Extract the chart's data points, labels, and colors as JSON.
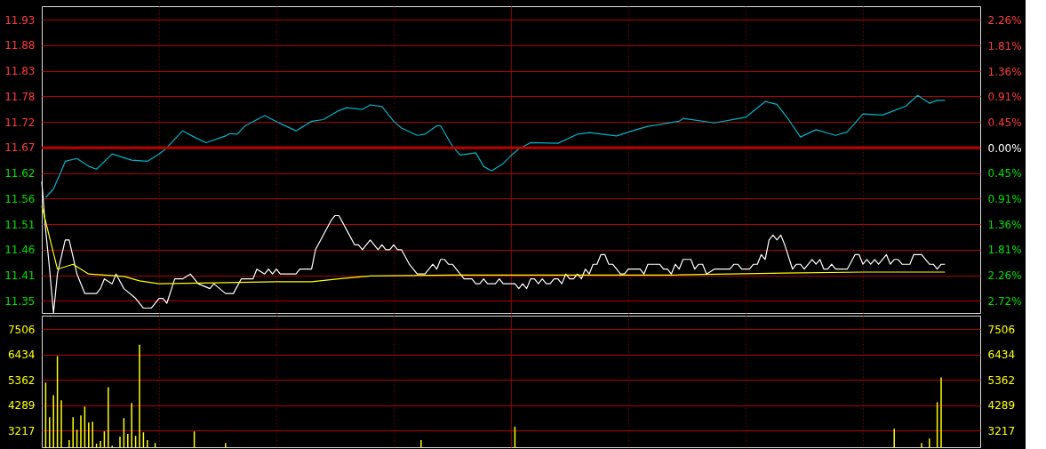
{
  "chart_data": [
    {
      "type": "line",
      "categories": [
        null,
        null,
        null,
        null,
        null,
        null,
        null,
        null,
        null,
        null,
        null,
        null,
        null,
        null,
        null,
        null,
        null,
        null,
        null,
        null,
        null,
        null,
        null,
        null,
        null,
        null,
        null,
        null,
        null,
        null,
        null,
        null,
        null,
        null,
        null,
        null,
        null,
        null,
        null,
        null,
        null,
        null,
        null,
        null,
        null,
        null,
        null,
        null,
        null,
        null,
        null,
        null,
        null,
        null,
        null,
        null,
        null,
        null,
        null,
        null,
        null,
        null,
        null,
        null,
        null,
        null,
        null,
        null,
        null,
        null,
        null,
        null,
        null,
        null,
        null,
        null,
        null,
        null,
        null,
        null,
        null,
        null,
        null,
        null,
        null,
        null,
        null,
        null,
        null,
        null,
        null,
        null,
        null,
        null,
        null,
        null,
        null,
        null,
        null,
        null,
        null,
        null,
        null,
        null,
        null,
        null,
        null,
        null,
        null,
        null,
        null,
        null,
        null,
        null,
        null,
        null,
        null,
        null,
        null,
        null,
        null,
        null,
        null,
        null,
        null,
        null,
        null,
        null,
        null,
        null,
        null,
        null,
        null,
        null,
        null,
        null,
        null,
        null,
        null,
        null,
        null,
        null,
        null,
        null,
        null,
        null,
        null,
        null,
        null,
        null,
        null,
        null,
        null,
        null,
        null,
        null,
        null,
        null,
        null,
        null,
        null,
        null,
        null,
        null,
        null,
        null,
        null,
        null,
        null,
        null,
        null,
        null,
        null,
        null,
        null,
        null,
        null,
        null,
        null,
        null,
        null,
        null,
        null,
        null,
        null,
        null,
        null,
        null,
        null,
        null,
        null,
        null,
        null,
        null,
        null,
        null,
        null,
        null,
        null,
        null,
        null,
        null,
        null,
        null,
        null,
        null,
        null,
        null,
        null,
        null,
        null,
        null,
        null,
        null,
        null,
        null,
        null,
        null,
        null,
        null,
        null,
        null,
        null,
        null,
        null,
        null,
        null,
        null,
        null,
        null,
        null,
        null,
        null,
        null,
        null,
        null,
        null,
        null,
        null,
        null,
        null
      ],
      "ylim": [
        11.33,
        11.96
      ],
      "yticks": [
        {
          "value": 11.355,
          "label": "11.35"
        },
        {
          "value": 11.4075,
          "label": "11.41"
        },
        11.46,
        {
          "value": 11.5125,
          "label": "11.51"
        },
        {
          "value": 11.565,
          "label": "11.56"
        },
        {
          "value": 11.6175,
          "label": "11.62"
        },
        11.67,
        {
          "value": 11.7225,
          "label": "11.72"
        },
        {
          "value": 11.775,
          "label": "11.78"
        },
        {
          "value": 11.8275,
          "label": "11.83"
        },
        11.88,
        {
          "value": 11.9325,
          "label": "11.93"
        }
      ],
      "y2lim": [
        -2.93,
        2.51
      ],
      "y2ticks": [
        {
          "value": -2.715,
          "label": "2.72%"
        },
        {
          "value": -2.2625,
          "label": "2.26%"
        },
        {
          "value": -1.81,
          "label": "1.81%"
        },
        {
          "value": -1.3575,
          "label": "1.36%"
        },
        {
          "value": -0.905,
          "label": "0.91%"
        },
        {
          "value": -0.4525,
          "label": "0.45%"
        },
        {
          "value": 0,
          "label": "0.00%"
        },
        {
          "value": 0.4525,
          "label": "0.45%"
        },
        {
          "value": 0.905,
          "label": "0.91%"
        },
        {
          "value": 1.3575,
          "label": "1.36%"
        },
        {
          "value": 1.81,
          "label": "1.81%"
        },
        {
          "value": 2.2625,
          "label": "2.26%"
        }
      ],
      "grid": true,
      "tick_labels": "y",
      "ref_lines": [
        {
          "axis": "y2",
          "value": 0,
          "color": "#c00000",
          "line_style": "solid"
        }
      ],
      "series": [
        {
          "color": "#ffffff",
          "values": [
            11.6,
            11.5,
            11.42,
            11.33,
            11.41,
            null,
            11.48,
            11.48,
            null,
            11.41,
            null,
            11.37,
            11.37,
            11.37,
            11.37,
            11.38,
            11.4,
            null,
            11.39,
            11.41,
            null,
            11.38,
            null,
            null,
            11.36,
            null,
            11.34,
            11.34,
            11.34,
            null,
            11.36,
            11.36,
            11.35,
            null,
            11.4,
            11.4,
            11.4,
            null,
            11.41,
            11.4,
            11.39,
            null,
            null,
            11.38,
            11.39,
            null,
            null,
            11.37,
            11.37,
            11.37,
            null,
            11.4,
            11.4,
            11.4,
            11.4,
            11.42,
            null,
            11.41,
            11.42,
            11.41,
            11.42,
            11.41,
            11.41,
            11.41,
            11.41,
            11.41,
            11.42,
            11.42,
            11.42,
            11.42,
            11.46,
            null,
            null,
            null,
            11.52,
            11.53,
            11.53,
            null,
            11.5,
            null,
            11.47,
            11.47,
            11.46,
            null,
            11.48,
            null,
            11.46,
            11.47,
            11.46,
            11.46,
            11.47,
            11.46,
            11.46,
            null,
            11.43,
            null,
            11.41,
            11.41,
            11.41,
            null,
            11.43,
            11.42,
            11.44,
            11.44,
            11.43,
            11.43,
            null,
            null,
            11.4,
            11.4,
            11.4,
            11.39,
            11.39,
            11.4,
            11.39,
            11.39,
            11.39,
            11.4,
            11.39,
            11.39,
            11.39,
            11.39,
            11.38,
            11.39,
            11.38,
            11.4,
            11.4,
            11.39,
            11.4,
            11.39,
            11.39,
            11.4,
            11.4,
            11.39,
            11.41,
            11.4,
            11.4,
            11.41,
            11.4,
            11.42,
            11.41,
            11.43,
            11.43,
            11.45,
            11.45,
            11.43,
            11.43,
            null,
            11.41,
            11.41,
            11.42,
            11.42,
            11.42,
            11.42,
            11.41,
            11.43,
            11.43,
            11.43,
            11.43,
            11.42,
            11.42,
            11.41,
            11.43,
            11.42,
            11.44,
            11.44,
            11.44,
            11.42,
            11.43,
            11.43,
            11.41,
            null,
            11.42,
            11.42,
            11.42,
            11.42,
            11.42,
            11.43,
            11.43,
            11.42,
            11.42,
            11.42,
            11.43,
            11.43,
            11.45,
            11.44,
            11.48,
            11.49,
            11.48,
            11.49,
            11.47,
            null,
            11.42,
            11.43,
            11.43,
            11.42,
            null,
            11.44,
            11.43,
            11.44,
            11.42,
            11.42,
            11.43,
            11.42,
            11.42,
            11.42,
            11.42,
            null,
            11.45,
            11.45,
            11.43,
            11.44,
            11.43,
            11.44,
            11.43,
            11.44,
            11.45,
            11.43,
            11.44,
            11.44,
            11.43,
            11.43,
            11.43,
            11.45,
            11.45,
            11.45,
            null,
            11.43,
            11.43,
            11.42,
            11.43,
            11.43,
            null,
            null,
            null,
            null,
            null,
            null,
            null,
            null,
            null
          ]
        },
        {
          "color": "#ffff00",
          "values": [
            11.55,
            null,
            null,
            null,
            11.42,
            null,
            null,
            null,
            11.43,
            null,
            null,
            null,
            11.41,
            null,
            null,
            null,
            11.408,
            null,
            null,
            null,
            null,
            11.405,
            null,
            null,
            null,
            11.396,
            null,
            null,
            null,
            null,
            11.39,
            null,
            null,
            null,
            null,
            null,
            null,
            null,
            null,
            null,
            null,
            null,
            null,
            null,
            null,
            null,
            null,
            null,
            null,
            null,
            null,
            null,
            null,
            null,
            null,
            null,
            null,
            null,
            null,
            null,
            11.394,
            null,
            null,
            null,
            null,
            null,
            null,
            null,
            null,
            11.394,
            null,
            null,
            null,
            null,
            null,
            null,
            null,
            11.401,
            null,
            null,
            null,
            null,
            null,
            null,
            11.406,
            null,
            null,
            null,
            null,
            null,
            null,
            null,
            null,
            null,
            null,
            null,
            null,
            null,
            null,
            null,
            null,
            null,
            null,
            null,
            null,
            null,
            null,
            null,
            11.408,
            null,
            null,
            null,
            null,
            null,
            null,
            null,
            null,
            null,
            null,
            null,
            null,
            null,
            null,
            null,
            null,
            null,
            null,
            null,
            null,
            null,
            null,
            null,
            null,
            null,
            null,
            null,
            null,
            null,
            null,
            null,
            null,
            null,
            null,
            null,
            null,
            null,
            null,
            null,
            null,
            null,
            null,
            null,
            null,
            null,
            null,
            null,
            null,
            null,
            null,
            null,
            null,
            11.408,
            null,
            null,
            null,
            null,
            null,
            null,
            null,
            null,
            null,
            null,
            null,
            null,
            null,
            null,
            null,
            null,
            null,
            null,
            null,
            null,
            null,
            null,
            null,
            null,
            null,
            null,
            null,
            null,
            11.412,
            null,
            null,
            null,
            null,
            null,
            null,
            null,
            null,
            null,
            null,
            null,
            null,
            null,
            null,
            null,
            null,
            null,
            null,
            null,
            11.414,
            null,
            null,
            null,
            null,
            null,
            null,
            null,
            null,
            null,
            null,
            null,
            null,
            null,
            null,
            null,
            null,
            null,
            null,
            null,
            null,
            11.414,
            null,
            null,
            null,
            null,
            null,
            null,
            null,
            null,
            null
          ]
        },
        {
          "color": "#00b4c8",
          "axis": "y2",
          "values": [
            null,
            -0.88,
            null,
            -0.73,
            null,
            -0.41,
            -0.24,
            null,
            null,
            -0.19,
            null,
            null,
            -0.33,
            null,
            -0.38,
            null,
            null,
            null,
            -0.11,
            null,
            null,
            null,
            null,
            -0.22,
            null,
            null,
            null,
            -0.24,
            null,
            null,
            -0.11,
            null,
            0.0,
            null,
            null,
            null,
            0.3,
            null,
            null,
            0.19,
            null,
            null,
            0.09,
            null,
            null,
            null,
            null,
            0.21,
            0.25,
            null,
            0.24,
            null,
            0.39,
            null,
            null,
            null,
            null,
            0.57,
            null,
            null,
            null,
            0.43,
            null,
            null,
            null,
            0.3,
            null,
            null,
            null,
            0.47,
            null,
            null,
            0.5,
            null,
            null,
            null,
            0.66,
            null,
            0.71,
            null,
            null,
            null,
            0.68,
            null,
            0.76,
            null,
            null,
            0.73,
            null,
            null,
            0.47,
            null,
            0.35,
            null,
            null,
            null,
            0.22,
            null,
            0.24,
            null,
            null,
            0.39,
            0.39,
            null,
            null,
            0.03,
            null,
            -0.13,
            null,
            null,
            null,
            -0.09,
            null,
            -0.33,
            null,
            -0.41,
            null,
            null,
            -0.28,
            null,
            -0.14,
            null,
            -0.02,
            null,
            null,
            0.09,
            null,
            null,
            null,
            null,
            null,
            null,
            0.08,
            null,
            null,
            null,
            null,
            0.24,
            null,
            null,
            0.27,
            null,
            null,
            null,
            null,
            null,
            null,
            0.21,
            null,
            null,
            null,
            0.3,
            null,
            null,
            null,
            0.38,
            null,
            null,
            null,
            null,
            null,
            null,
            null,
            0.47,
            0.52,
            null,
            null,
            null,
            null,
            null,
            null,
            null,
            0.44,
            null,
            null,
            null,
            null,
            null,
            null,
            null,
            0.54,
            null,
            null,
            null,
            null,
            0.82,
            null,
            null,
            0.77,
            null,
            null,
            0.5,
            null,
            null,
            0.19,
            null,
            null,
            null,
            0.32,
            null,
            null,
            null,
            null,
            0.22,
            null,
            null,
            0.28,
            null,
            null,
            null,
            0.6,
            null,
            null,
            null,
            null,
            0.58,
            null,
            null,
            null,
            null,
            null,
            0.74,
            null,
            null,
            0.93,
            null,
            null,
            0.79,
            null,
            0.84,
            null,
            0.84,
            null,
            null,
            null,
            null,
            null,
            null,
            null,
            null,
            null
          ]
        }
      ]
    },
    {
      "type": "bar",
      "color": "#ffff00",
      "categories": [
        null,
        null,
        null,
        null,
        null,
        null,
        null,
        null,
        null,
        null,
        null,
        null,
        null,
        null,
        null,
        null,
        null,
        null,
        null,
        null,
        null,
        null,
        null,
        null,
        null,
        null,
        null,
        null,
        null,
        null,
        null,
        null,
        null,
        null,
        null,
        null,
        null,
        null,
        null,
        null,
        null,
        null,
        null,
        null,
        null,
        null,
        null,
        null,
        null,
        null,
        null,
        null,
        null,
        null,
        null,
        null,
        null,
        null,
        null,
        null,
        null,
        null,
        null,
        null,
        null,
        null,
        null,
        null,
        null,
        null,
        null,
        null,
        null,
        null,
        null,
        null,
        null,
        null,
        null,
        null,
        null,
        null,
        null,
        null,
        null,
        null,
        null,
        null,
        null,
        null,
        null,
        null,
        null,
        null,
        null,
        null,
        null,
        null,
        null,
        null,
        null,
        null,
        null,
        null,
        null,
        null,
        null,
        null,
        null,
        null,
        null,
        null,
        null,
        null,
        null,
        null,
        null,
        null,
        null,
        null,
        null,
        null,
        null,
        null,
        null,
        null,
        null,
        null,
        null,
        null,
        null,
        null,
        null,
        null,
        null,
        null,
        null,
        null,
        null,
        null,
        null,
        null,
        null,
        null,
        null,
        null,
        null,
        null,
        null,
        null,
        null,
        null,
        null,
        null,
        null,
        null,
        null,
        null,
        null,
        null,
        null,
        null,
        null,
        null,
        null,
        null,
        null,
        null,
        null,
        null,
        null,
        null,
        null,
        null,
        null,
        null,
        null,
        null,
        null,
        null,
        null,
        null,
        null,
        null,
        null,
        null,
        null,
        null,
        null,
        null,
        null,
        null,
        null,
        null,
        null,
        null,
        null,
        null,
        null,
        null,
        null,
        null,
        null,
        null,
        null,
        null,
        null,
        null,
        null,
        null,
        null,
        null,
        null,
        null,
        null,
        null,
        null,
        null,
        null,
        null,
        null,
        null,
        null,
        null,
        null,
        null,
        null,
        null,
        null,
        null,
        null,
        null,
        null,
        null,
        null,
        null,
        null,
        null,
        null,
        null,
        null
      ],
      "ylim": [
        2510,
        8070
      ],
      "yticks": [
        3217,
        4289,
        5362,
        6434,
        7506
      ],
      "y2lim": [
        2510,
        8070
      ],
      "y2ticks": [
        3217,
        4289,
        5362,
        6434,
        7506
      ],
      "grid": true,
      "tick_labels": "y",
      "values": [
        null,
        5240,
        3780,
        4710,
        6360,
        4490,
        null,
        2810,
        3780,
        3250,
        3850,
        4230,
        3550,
        3590,
        2660,
        2770,
        3180,
        5050,
        2580,
        null,
        2960,
        3740,
        3070,
        4380,
        2990,
        6840,
        3140,
        2810,
        null,
        2690,
        null,
        null,
        null,
        null,
        null,
        null,
        null,
        null,
        null,
        3180,
        null,
        null,
        null,
        null,
        null,
        null,
        null,
        2690,
        null,
        null,
        null,
        null,
        null,
        null,
        null,
        null,
        null,
        null,
        null,
        null,
        null,
        null,
        null,
        null,
        null,
        null,
        null,
        null,
        null,
        null,
        null,
        null,
        null,
        null,
        null,
        null,
        null,
        null,
        null,
        null,
        null,
        null,
        null,
        null,
        null,
        null,
        null,
        null,
        null,
        null,
        null,
        null,
        null,
        null,
        null,
        null,
        null,
        2810,
        null,
        null,
        null,
        null,
        null,
        null,
        null,
        null,
        null,
        null,
        null,
        null,
        null,
        null,
        null,
        null,
        null,
        null,
        null,
        null,
        null,
        null,
        null,
        3380,
        null,
        null,
        null,
        null,
        null,
        null,
        null,
        null,
        null,
        null,
        null,
        null,
        null,
        null,
        null,
        null,
        null,
        null,
        null,
        null,
        null,
        null,
        null,
        null,
        null,
        null,
        null,
        null,
        null,
        null,
        null,
        null,
        null,
        null,
        null,
        null,
        null,
        null,
        null,
        null,
        null,
        null,
        null,
        null,
        null,
        null,
        null,
        null,
        null,
        null,
        null,
        null,
        null,
        null,
        null,
        null,
        null,
        null,
        null,
        null,
        null,
        null,
        null,
        null,
        null,
        null,
        null,
        null,
        null,
        null,
        null,
        null,
        null,
        null,
        null,
        null,
        null,
        null,
        null,
        null,
        null,
        null,
        null,
        null,
        null,
        null,
        null,
        null,
        null,
        null,
        null,
        null,
        null,
        null,
        null,
        null,
        3290,
        null,
        null,
        null,
        null,
        null,
        null,
        2690,
        null,
        2880,
        null,
        4410,
        5460,
        null,
        null,
        null,
        null,
        null,
        null,
        null,
        null,
        null,
        null
      ]
    }
  ]
}
